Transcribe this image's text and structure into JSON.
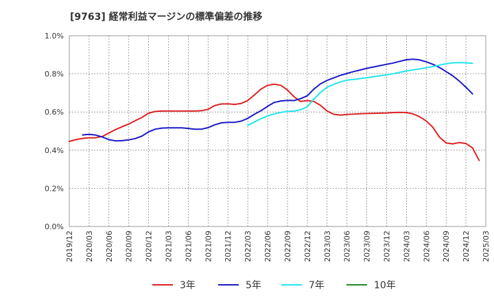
{
  "chart_data": {
    "type": "line",
    "title": "[9763]  経常利益マージンの標準偏差の推移",
    "xlabel": "",
    "ylabel": "",
    "x": [
      "2019/12",
      "2020/03",
      "2020/06",
      "2020/09",
      "2020/12",
      "2021/03",
      "2021/06",
      "2021/09",
      "2021/12",
      "2022/03",
      "2022/06",
      "2022/09",
      "2022/12",
      "2023/03",
      "2023/06",
      "2023/09",
      "2023/12",
      "2024/03",
      "2024/06",
      "2024/09",
      "2024/12",
      "2025/03"
    ],
    "ylim": [
      0,
      1.0
    ],
    "yticks": [
      "0.0%",
      "0.2%",
      "0.4%",
      "0.6%",
      "0.8%",
      "1.0%"
    ],
    "grid": true,
    "legend_position": "bottom",
    "series": [
      {
        "name": "3年",
        "color": "#dd2222",
        "points": [
          [
            0,
            0.446
          ],
          [
            0.333,
            0.455
          ],
          [
            0.667,
            0.462
          ],
          [
            1,
            0.465
          ],
          [
            1.333,
            0.465
          ],
          [
            1.667,
            0.472
          ],
          [
            2,
            0.49
          ],
          [
            2.333,
            0.508
          ],
          [
            2.667,
            0.523
          ],
          [
            3,
            0.537
          ],
          [
            3.333,
            0.555
          ],
          [
            3.667,
            0.572
          ],
          [
            4,
            0.594
          ],
          [
            4.333,
            0.603
          ],
          [
            4.667,
            0.605
          ],
          [
            5,
            0.605
          ],
          [
            5.333,
            0.605
          ],
          [
            5.667,
            0.605
          ],
          [
            6,
            0.605
          ],
          [
            6.333,
            0.605
          ],
          [
            6.667,
            0.607
          ],
          [
            7,
            0.614
          ],
          [
            7.333,
            0.634
          ],
          [
            7.667,
            0.642
          ],
          [
            8,
            0.643
          ],
          [
            8.333,
            0.64
          ],
          [
            8.667,
            0.645
          ],
          [
            9,
            0.66
          ],
          [
            9.333,
            0.69
          ],
          [
            9.667,
            0.72
          ],
          [
            10,
            0.74
          ],
          [
            10.333,
            0.746
          ],
          [
            10.667,
            0.74
          ],
          [
            11,
            0.715
          ],
          [
            11.333,
            0.68
          ],
          [
            11.667,
            0.655
          ],
          [
            12,
            0.66
          ],
          [
            12.333,
            0.655
          ],
          [
            12.667,
            0.635
          ],
          [
            13,
            0.605
          ],
          [
            13.333,
            0.588
          ],
          [
            13.667,
            0.584
          ],
          [
            14,
            0.587
          ],
          [
            14.333,
            0.589
          ],
          [
            14.667,
            0.591
          ],
          [
            15,
            0.592
          ],
          [
            15.333,
            0.593
          ],
          [
            15.667,
            0.594
          ],
          [
            16,
            0.595
          ],
          [
            16.333,
            0.597
          ],
          [
            16.667,
            0.598
          ],
          [
            17,
            0.597
          ],
          [
            17.333,
            0.59
          ],
          [
            17.667,
            0.575
          ],
          [
            18,
            0.553
          ],
          [
            18.333,
            0.52
          ],
          [
            18.667,
            0.468
          ],
          [
            19,
            0.438
          ],
          [
            19.333,
            0.433
          ],
          [
            19.667,
            0.44
          ],
          [
            20,
            0.435
          ],
          [
            20.333,
            0.412
          ],
          [
            20.667,
            0.346
          ]
        ]
      },
      {
        "name": "5年",
        "color": "#1a1ac8",
        "points": [
          [
            0.667,
            0.48
          ],
          [
            1,
            0.483
          ],
          [
            1.333,
            0.479
          ],
          [
            1.667,
            0.469
          ],
          [
            2,
            0.455
          ],
          [
            2.333,
            0.449
          ],
          [
            2.667,
            0.45
          ],
          [
            3,
            0.454
          ],
          [
            3.333,
            0.461
          ],
          [
            3.667,
            0.474
          ],
          [
            4,
            0.496
          ],
          [
            4.333,
            0.51
          ],
          [
            4.667,
            0.516
          ],
          [
            5,
            0.517
          ],
          [
            5.333,
            0.517
          ],
          [
            5.667,
            0.517
          ],
          [
            6,
            0.514
          ],
          [
            6.333,
            0.51
          ],
          [
            6.667,
            0.51
          ],
          [
            7,
            0.518
          ],
          [
            7.333,
            0.533
          ],
          [
            7.667,
            0.543
          ],
          [
            8,
            0.546
          ],
          [
            8.333,
            0.546
          ],
          [
            8.667,
            0.552
          ],
          [
            9,
            0.567
          ],
          [
            9.333,
            0.588
          ],
          [
            9.667,
            0.607
          ],
          [
            10,
            0.63
          ],
          [
            10.333,
            0.65
          ],
          [
            10.667,
            0.658
          ],
          [
            11,
            0.661
          ],
          [
            11.333,
            0.66
          ],
          [
            11.667,
            0.67
          ],
          [
            12,
            0.685
          ],
          [
            12.333,
            0.72
          ],
          [
            12.667,
            0.748
          ],
          [
            13,
            0.766
          ],
          [
            13.333,
            0.779
          ],
          [
            13.667,
            0.792
          ],
          [
            14,
            0.802
          ],
          [
            14.333,
            0.812
          ],
          [
            14.667,
            0.82
          ],
          [
            15,
            0.829
          ],
          [
            15.333,
            0.836
          ],
          [
            15.667,
            0.843
          ],
          [
            16,
            0.85
          ],
          [
            16.333,
            0.857
          ],
          [
            16.667,
            0.866
          ],
          [
            17,
            0.874
          ],
          [
            17.333,
            0.877
          ],
          [
            17.667,
            0.873
          ],
          [
            18,
            0.863
          ],
          [
            18.333,
            0.85
          ],
          [
            18.667,
            0.833
          ],
          [
            19,
            0.812
          ],
          [
            19.333,
            0.79
          ],
          [
            19.667,
            0.762
          ],
          [
            20,
            0.73
          ],
          [
            20.333,
            0.695
          ]
        ]
      },
      {
        "name": "7年",
        "color": "#22e5ee",
        "points": [
          [
            9,
            0.53
          ],
          [
            9.333,
            0.548
          ],
          [
            9.667,
            0.565
          ],
          [
            10,
            0.58
          ],
          [
            10.333,
            0.59
          ],
          [
            10.667,
            0.598
          ],
          [
            11,
            0.603
          ],
          [
            11.333,
            0.605
          ],
          [
            11.667,
            0.612
          ],
          [
            12,
            0.628
          ],
          [
            12.333,
            0.668
          ],
          [
            12.667,
            0.703
          ],
          [
            13,
            0.73
          ],
          [
            13.333,
            0.745
          ],
          [
            13.667,
            0.758
          ],
          [
            14,
            0.767
          ],
          [
            14.333,
            0.771
          ],
          [
            14.667,
            0.775
          ],
          [
            15,
            0.78
          ],
          [
            15.333,
            0.785
          ],
          [
            15.667,
            0.79
          ],
          [
            16,
            0.795
          ],
          [
            16.333,
            0.801
          ],
          [
            16.667,
            0.808
          ],
          [
            17,
            0.815
          ],
          [
            17.333,
            0.821
          ],
          [
            17.667,
            0.826
          ],
          [
            18,
            0.832
          ],
          [
            18.333,
            0.838
          ],
          [
            18.667,
            0.846
          ],
          [
            19,
            0.853
          ],
          [
            19.333,
            0.858
          ],
          [
            19.667,
            0.859
          ],
          [
            20,
            0.858
          ],
          [
            20.333,
            0.855
          ]
        ]
      },
      {
        "name": "10年",
        "color": "#228822",
        "points": []
      }
    ]
  }
}
